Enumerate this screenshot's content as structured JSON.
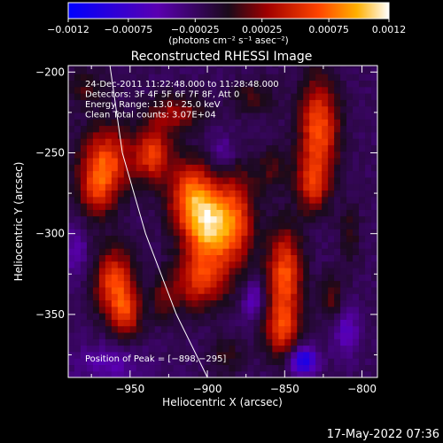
{
  "chart_data": {
    "type": "heatmap",
    "title": "Reconstructed RHESSI Image",
    "xlabel": "Heliocentric X (arcsec)",
    "ylabel": "Heliocentric Y (arcsec)",
    "xlim": [
      -990,
      -790
    ],
    "ylim": [
      -389,
      -196
    ],
    "x_ticks": [
      -950,
      -900,
      -850,
      -800
    ],
    "x_tick_labels": [
      "−950",
      "−900",
      "−850",
      "−800"
    ],
    "y_ticks": [
      -350,
      -300,
      -250,
      -200
    ],
    "y_tick_labels": [
      "−350",
      "−300",
      "−250",
      "−200"
    ],
    "colorbar": {
      "range": [
        -0.0012,
        0.0012
      ],
      "ticks": [
        -0.0012,
        -0.00075,
        -0.00025,
        0.00025,
        0.00075,
        0.0012
      ],
      "tick_labels": [
        "−0.0012",
        "−0.00075",
        "−0.00025",
        "0.00025",
        "0.00075",
        "0.0012"
      ],
      "unit_label": "(photons cm⁻² s⁻¹ asec⁻²)"
    },
    "annotations": [
      "24-Dec-2011 11:22:48.000 to 11:28:48.000",
      "Detectors: 3F 4F 5F 6F 7F 8F, Att 0",
      "Energy Range: 13.0 - 25.0 keV",
      "Clean    Total counts: 3.07E+04"
    ],
    "peak_label": "Position of Peak = [−898,−295]",
    "peak": {
      "x": -898,
      "y": -295,
      "value": 0.0012
    },
    "limb_line": [
      [
        -963,
        -196
      ],
      [
        -955,
        -250
      ],
      [
        -940,
        -300
      ],
      [
        -920,
        -350
      ],
      [
        -900,
        -389
      ]
    ],
    "sources": [
      {
        "x": -898,
        "y": -295,
        "value": 0.0012,
        "sx": 12,
        "sy": 18
      },
      {
        "x": -912,
        "y": -275,
        "value": 0.00075,
        "sx": 10,
        "sy": 15
      },
      {
        "x": -905,
        "y": -330,
        "value": 0.00065,
        "sx": 12,
        "sy": 12
      },
      {
        "x": -880,
        "y": -290,
        "value": 0.00055,
        "sx": 8,
        "sy": 22
      },
      {
        "x": -965,
        "y": -255,
        "value": 0.00085,
        "sx": 12,
        "sy": 15
      },
      {
        "x": -972,
        "y": -275,
        "value": 0.0005,
        "sx": 8,
        "sy": 12
      },
      {
        "x": -935,
        "y": -250,
        "value": 0.0008,
        "sx": 8,
        "sy": 12
      },
      {
        "x": -920,
        "y": -225,
        "value": 0.0005,
        "sx": 12,
        "sy": 8
      },
      {
        "x": -960,
        "y": -330,
        "value": 0.00085,
        "sx": 9,
        "sy": 15
      },
      {
        "x": -952,
        "y": -350,
        "value": 0.0006,
        "sx": 7,
        "sy": 10
      },
      {
        "x": -928,
        "y": -340,
        "value": 0.00035,
        "sx": 6,
        "sy": 10
      },
      {
        "x": -850,
        "y": -325,
        "value": 0.0009,
        "sx": 8,
        "sy": 20
      },
      {
        "x": -852,
        "y": -360,
        "value": 0.00065,
        "sx": 8,
        "sy": 12
      },
      {
        "x": -828,
        "y": -235,
        "value": 0.0009,
        "sx": 9,
        "sy": 22
      },
      {
        "x": -832,
        "y": -270,
        "value": 0.0006,
        "sx": 7,
        "sy": 12
      },
      {
        "x": -870,
        "y": -215,
        "value": 0.0003,
        "sx": 10,
        "sy": 8
      },
      {
        "x": -858,
        "y": -260,
        "value": 0.0003,
        "sx": 8,
        "sy": 10
      },
      {
        "x": -978,
        "y": -210,
        "value": 0.0003,
        "sx": 10,
        "sy": 8
      },
      {
        "x": -888,
        "y": -375,
        "value": 0.00025,
        "sx": 8,
        "sy": 8
      },
      {
        "x": -820,
        "y": -340,
        "value": 0.00035,
        "sx": 6,
        "sy": 10
      },
      {
        "x": -808,
        "y": -300,
        "value": 0.00025,
        "sx": 5,
        "sy": 14
      },
      {
        "x": -965,
        "y": -380,
        "value": -0.0003,
        "sx": 15,
        "sy": 8
      },
      {
        "x": -838,
        "y": -378,
        "value": -0.00085,
        "sx": 6,
        "sy": 6
      },
      {
        "x": -890,
        "y": -250,
        "value": -0.0003,
        "sx": 6,
        "sy": 8
      },
      {
        "x": -810,
        "y": -360,
        "value": -0.0004,
        "sx": 6,
        "sy": 10
      },
      {
        "x": -985,
        "y": -310,
        "value": -0.0003,
        "sx": 5,
        "sy": 12
      },
      {
        "x": -870,
        "y": -340,
        "value": -0.0004,
        "sx": 5,
        "sy": 8
      }
    ]
  },
  "footer": {
    "timestamp": "17-May-2022 07:36"
  }
}
